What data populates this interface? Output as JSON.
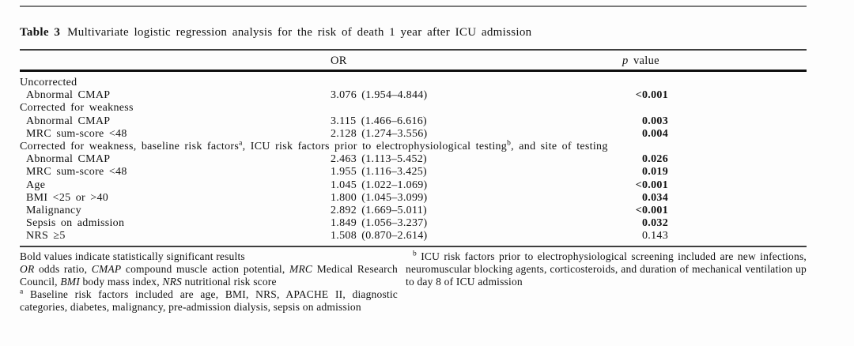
{
  "title": {
    "label": "Table 3",
    "text": "Multivariate logistic regression analysis for the risk of death 1 year after ICU admission"
  },
  "table": {
    "columns": {
      "or": "OR",
      "p_symbol": "p",
      "p_rest": " value"
    },
    "rows": [
      {
        "type": "section",
        "label": [
          {
            "t": "Uncorrected"
          }
        ]
      },
      {
        "type": "item",
        "label": [
          {
            "t": "Abnormal CMAP"
          }
        ],
        "or": "3.076 (1.954–4.844)",
        "p": "<0.001",
        "bold": true
      },
      {
        "type": "section",
        "label": [
          {
            "t": "Corrected for weakness"
          }
        ]
      },
      {
        "type": "item",
        "label": [
          {
            "t": "Abnormal CMAP"
          }
        ],
        "or": "3.115 (1.466–6.616)",
        "p": "0.003",
        "bold": true
      },
      {
        "type": "item",
        "label": [
          {
            "t": "MRC sum-score <48"
          }
        ],
        "or": "2.128 (1.274–3.556)",
        "p": "0.004",
        "bold": true
      },
      {
        "type": "section",
        "label": [
          {
            "t": "Corrected for weakness, baseline risk factors"
          },
          {
            "t": "a",
            "sup": true
          },
          {
            "t": ", ICU risk factors prior to electrophysiological testing"
          },
          {
            "t": "b",
            "sup": true
          },
          {
            "t": ", and site of testing"
          }
        ]
      },
      {
        "type": "item",
        "label": [
          {
            "t": "Abnormal CMAP"
          }
        ],
        "or": "2.463 (1.113–5.452)",
        "p": "0.026",
        "bold": true
      },
      {
        "type": "item",
        "label": [
          {
            "t": "MRC sum-score <48"
          }
        ],
        "or": "1.955 (1.116–3.425)",
        "p": "0.019",
        "bold": true
      },
      {
        "type": "item",
        "label": [
          {
            "t": "Age"
          }
        ],
        "or": "1.045 (1.022–1.069)",
        "p": "<0.001",
        "bold": true
      },
      {
        "type": "item",
        "label": [
          {
            "t": "BMI <25 or >40"
          }
        ],
        "or": "1.800 (1.045–3.099)",
        "p": "0.034",
        "bold": true
      },
      {
        "type": "item",
        "label": [
          {
            "t": "Malignancy"
          }
        ],
        "or": "2.892 (1.669–5.011)",
        "p": "<0.001",
        "bold": true
      },
      {
        "type": "item",
        "label": [
          {
            "t": "Sepsis on admission"
          }
        ],
        "or": "1.849 (1.056–3.237)",
        "p": "0.032",
        "bold": true
      },
      {
        "type": "item",
        "label": [
          {
            "t": "NRS ≥5"
          }
        ],
        "or": "1.508 (0.870–2.614)",
        "p": "0.143",
        "bold": false
      }
    ]
  },
  "footnotes": {
    "left": [
      {
        "segments": [
          {
            "t": "Bold values indicate statistically significant results"
          }
        ]
      },
      {
        "segments": [
          {
            "t": "OR",
            "i": true
          },
          {
            "t": " odds ratio, "
          },
          {
            "t": "CMAP",
            "i": true
          },
          {
            "t": " compound muscle action potential, "
          },
          {
            "t": "MRC",
            "i": true
          },
          {
            "t": " Medical Research Council, "
          },
          {
            "t": "BMI",
            "i": true
          },
          {
            "t": " body mass index, "
          },
          {
            "t": "NRS",
            "i": true
          },
          {
            "t": " nutritional risk score"
          }
        ]
      },
      {
        "segments": [
          {
            "t": "a",
            "sup": true
          },
          {
            "t": " Baseline risk factors included are age, BMI, NRS, APACHE II, diagnostic categories, diabetes, malignancy, pre-admission dialysis, sepsis on admission"
          }
        ]
      }
    ],
    "right": [
      {
        "segments": [
          {
            "t": "b",
            "sup": true
          },
          {
            "t": " ICU risk factors prior to electrophysiological screening included are new infections, neuromuscular blocking agents, corticosteroids, and duration of mechanical ventilation up to day 8 of ICU admission"
          }
        ]
      }
    ]
  }
}
